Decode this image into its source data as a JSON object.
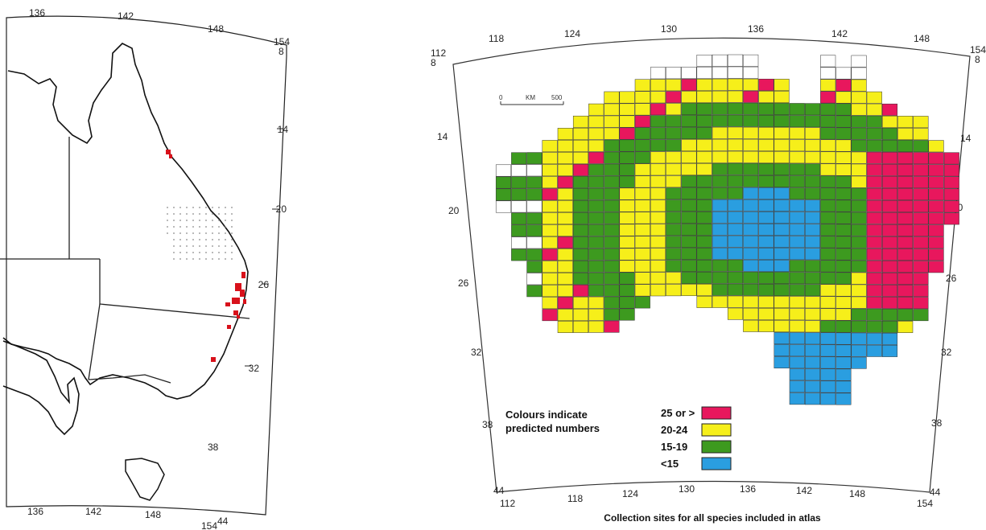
{
  "left_map": {
    "top_ticks": [
      "136",
      "142",
      "148",
      "154"
    ],
    "bottom_ticks": [
      "136",
      "142",
      "148",
      "154"
    ],
    "right_ticks": [
      "8",
      "14",
      "20",
      "26",
      "32",
      "38",
      "44"
    ]
  },
  "right_map": {
    "top_ticks": [
      "118",
      "124",
      "130",
      "136",
      "142",
      "148",
      "154"
    ],
    "top_left_ticks": [
      "112",
      "8"
    ],
    "bottom_ticks": [
      "112",
      "118",
      "124",
      "130",
      "136",
      "142",
      "148",
      "154"
    ],
    "left_ticks": [
      "14",
      "20",
      "26",
      "32",
      "38",
      "44"
    ],
    "right_ticks": [
      "8",
      "14",
      "20",
      "26",
      "32",
      "38",
      "44"
    ],
    "scale_bar": {
      "start": "0",
      "unit": "KM",
      "end": "500"
    },
    "legend": {
      "title_line1": "Colours indicate",
      "title_line2": "predicted numbers",
      "items": [
        {
          "label": "25 or >",
          "color": "#e8175d"
        },
        {
          "label": "20-24",
          "color": "#f6ef1a"
        },
        {
          "label": "15-19",
          "color": "#3d9a1f"
        },
        {
          "label": "<15",
          "color": "#2a9ee0"
        }
      ]
    },
    "caption": "Collection sites for all species included in atlas"
  }
}
